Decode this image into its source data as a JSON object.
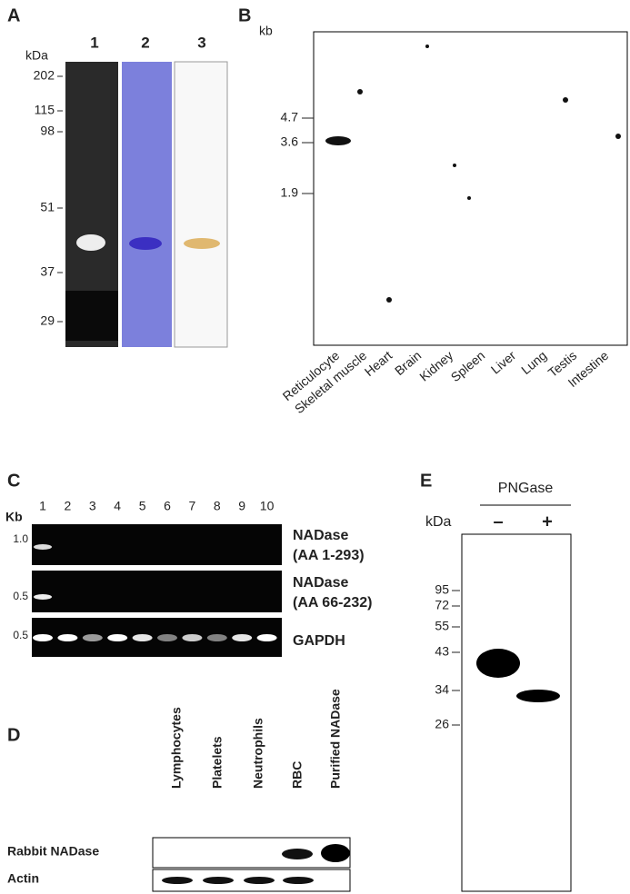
{
  "panels": {
    "A": {
      "label": "A",
      "unit": "kDa",
      "lanes": [
        "1",
        "2",
        "3"
      ],
      "markers": [
        "202",
        "115",
        "98",
        "51",
        "37",
        "29"
      ]
    },
    "B": {
      "label": "B",
      "unit": "kb",
      "markers": [
        "4.7",
        "3.6",
        "1.9"
      ],
      "lanes": [
        "Reticulocyte",
        "Skeletal muscle",
        "Heart",
        "Brain",
        "Kidney",
        "Spleen",
        "Liver",
        "Lung",
        "Testis",
        "Intestine"
      ]
    },
    "C": {
      "label": "C",
      "unit": "Kb",
      "lanes": [
        "1",
        "2",
        "3",
        "4",
        "5",
        "6",
        "7",
        "8",
        "9",
        "10"
      ],
      "rows": [
        {
          "marker": "1.0",
          "name": "NADase",
          "sub": "(AA 1-293)"
        },
        {
          "marker": "0.5",
          "name": "NADase",
          "sub": "(AA 66-232)"
        },
        {
          "marker": "0.5",
          "name": "GAPDH"
        }
      ]
    },
    "D": {
      "label": "D",
      "lanes": [
        "Lymphocytes",
        "Platelets",
        "Neutrophils",
        "RBC",
        "Purified NADase"
      ],
      "rows": [
        "Rabbit NADase",
        "Actin"
      ]
    },
    "E": {
      "label": "E",
      "treatment": "PNGase",
      "unit": "kDa",
      "lanes": [
        "–",
        "+"
      ],
      "markers": [
        "95",
        "72",
        "55",
        "43",
        "34",
        "26"
      ]
    }
  }
}
